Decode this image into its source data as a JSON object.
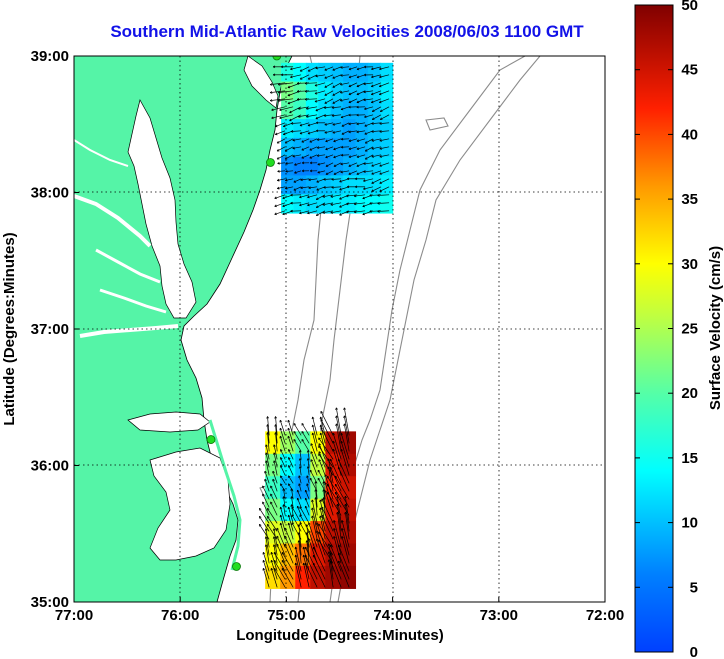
{
  "title": "Southern Mid-Atlantic Raw Velocities 2008/06/03 1100 GMT",
  "x_axis": {
    "label": "Longitude (Degrees:Minutes)",
    "range": [
      -77,
      -72
    ],
    "ticks": [
      {
        "value": -77,
        "label": "77:00"
      },
      {
        "value": -76,
        "label": "76:00"
      },
      {
        "value": -75,
        "label": "75:00"
      },
      {
        "value": -74,
        "label": "74:00"
      },
      {
        "value": -73,
        "label": "73:00"
      },
      {
        "value": -72,
        "label": "72:00"
      }
    ]
  },
  "y_axis": {
    "label": "Latitude (Degrees:Minutes)",
    "range": [
      35,
      39
    ],
    "ticks": [
      {
        "value": 39,
        "label": "39:00"
      },
      {
        "value": 38,
        "label": "38:00"
      },
      {
        "value": 37,
        "label": "37:00"
      },
      {
        "value": 36,
        "label": "36:00"
      },
      {
        "value": 35,
        "label": "35:00"
      }
    ]
  },
  "grid": "dotted",
  "colorbar": {
    "label": "Surface Velocity (cm/s)",
    "range": [
      0,
      50
    ],
    "ticks": [
      "0",
      "5",
      "10",
      "15",
      "20",
      "25",
      "30",
      "35",
      "40",
      "45",
      "50"
    ],
    "colormap": "jet"
  },
  "colors": {
    "land": "#55f4a7",
    "coastline": "#000000",
    "bathymetry": "#8c8c8c",
    "title": "#1212e8",
    "station": "#22dd22"
  },
  "chart_data": {
    "type": "heatmap",
    "description_free": true,
    "stations": [
      {
        "lon": -75.09,
        "lat": 39.0
      },
      {
        "lon": -75.15,
        "lat": 38.22
      },
      {
        "lon": -75.71,
        "lat": 36.19
      },
      {
        "lon": -75.47,
        "lat": 35.26
      }
    ],
    "regions": [
      {
        "name": "north",
        "lon_range": [
          -75.05,
          -74.0
        ],
        "lat_range": [
          37.85,
          38.95
        ],
        "velocity_field_cm_s": [
          [
            16,
            14,
            12,
            11,
            10,
            9,
            9,
            10,
            12
          ],
          [
            22,
            20,
            16,
            13,
            11,
            10,
            10,
            11,
            13
          ],
          [
            20,
            18,
            14,
            12,
            10,
            9,
            9,
            10,
            12
          ],
          [
            13,
            12,
            11,
            10,
            9,
            8,
            9,
            10,
            11
          ],
          [
            10,
            9,
            8,
            8,
            8,
            8,
            9,
            10,
            11
          ],
          [
            7,
            6,
            6,
            7,
            8,
            9,
            10,
            11,
            12
          ],
          [
            8,
            8,
            9,
            10,
            11,
            12,
            12,
            12,
            13
          ],
          [
            14,
            13,
            12,
            12,
            13,
            13,
            14,
            14,
            15
          ]
        ],
        "dominant_direction": "west-southwest"
      },
      {
        "name": "south",
        "lon_range": [
          -75.2,
          -74.35
        ],
        "lat_range": [
          35.1,
          36.25
        ],
        "velocity_field_cm_s": [
          [
            30,
            24,
            20,
            30,
            46,
            48
          ],
          [
            22,
            14,
            10,
            26,
            44,
            47
          ],
          [
            18,
            10,
            8,
            22,
            42,
            45
          ],
          [
            22,
            14,
            12,
            28,
            44,
            46
          ],
          [
            28,
            26,
            30,
            40,
            46,
            47
          ],
          [
            30,
            34,
            38,
            44,
            47,
            48
          ],
          [
            32,
            36,
            42,
            46,
            48,
            49
          ]
        ],
        "dominant_direction": "north-northwest"
      }
    ]
  }
}
